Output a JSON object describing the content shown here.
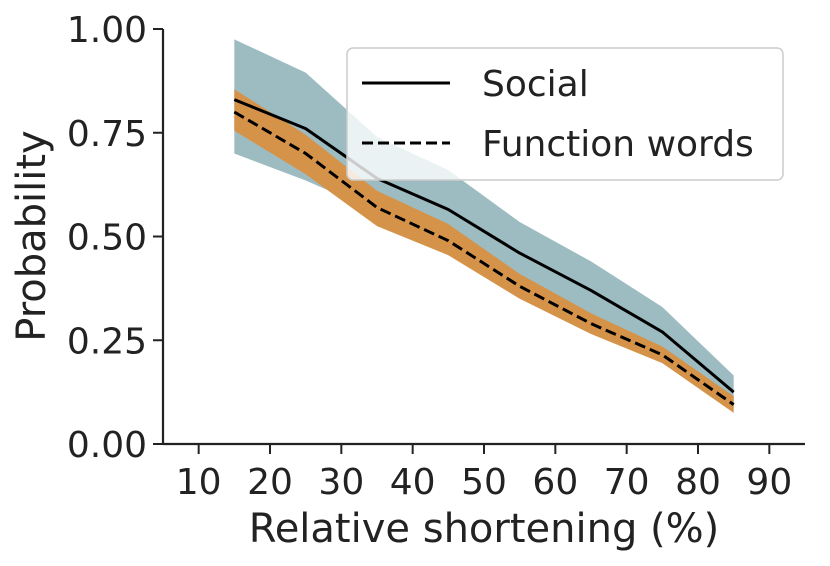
{
  "chart_data": {
    "type": "line",
    "title": "",
    "xlabel": "Relative shortening (%)",
    "ylabel": "Probability",
    "xlim": [
      5,
      95
    ],
    "ylim": [
      0,
      1
    ],
    "xticks": [
      10,
      20,
      30,
      40,
      50,
      60,
      70,
      80,
      90
    ],
    "yticks": [
      0.0,
      0.25,
      0.5,
      0.75,
      1.0
    ],
    "xtick_labels": [
      "10",
      "20",
      "30",
      "40",
      "50",
      "60",
      "70",
      "80",
      "90"
    ],
    "ytick_labels": [
      "0.00",
      "0.25",
      "0.50",
      "0.75",
      "1.00"
    ],
    "x": [
      15,
      25,
      35,
      45,
      55,
      65,
      75,
      85
    ],
    "series": [
      {
        "name": "Social",
        "style": "solid",
        "line_color": "#000000",
        "band_color": "#9dbcc2",
        "values": [
          0.83,
          0.76,
          0.64,
          0.565,
          0.46,
          0.37,
          0.27,
          0.125
        ],
        "lower": [
          0.7,
          0.635,
          0.56,
          0.48,
          0.385,
          0.3,
          0.21,
          0.09
        ],
        "upper": [
          0.975,
          0.895,
          0.74,
          0.66,
          0.535,
          0.44,
          0.33,
          0.165
        ]
      },
      {
        "name": "Function words",
        "style": "dashed",
        "line_color": "#000000",
        "band_color": "#d5934a",
        "values": [
          0.8,
          0.7,
          0.57,
          0.49,
          0.38,
          0.29,
          0.215,
          0.095
        ],
        "lower": [
          0.755,
          0.65,
          0.525,
          0.455,
          0.35,
          0.265,
          0.195,
          0.075
        ],
        "upper": [
          0.855,
          0.745,
          0.61,
          0.53,
          0.41,
          0.315,
          0.235,
          0.115
        ]
      }
    ],
    "legend": {
      "position": "top-right",
      "entries": [
        "Social",
        "Function words"
      ]
    }
  }
}
